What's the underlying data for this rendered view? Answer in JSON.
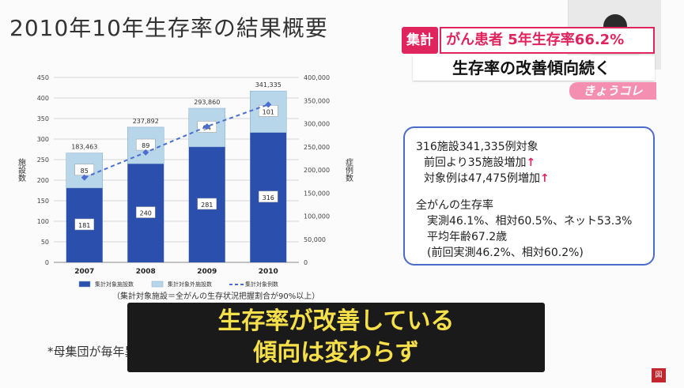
{
  "slide_title": "2010年10年生存率の結果概要",
  "banner": {
    "tag": "集計",
    "line1": "がん患者 5年生存率66.2%",
    "line2": "生存率の改善傾向続く",
    "corner": "きょうコレ"
  },
  "chart_data": {
    "type": "bar",
    "stacked": true,
    "categories": [
      "2007",
      "2008",
      "2009",
      "2010"
    ],
    "series": [
      {
        "name": "集計対象施設数",
        "values": [
          181,
          240,
          281,
          316
        ],
        "color": "#2b4fad"
      },
      {
        "name": "集計対象外施設数",
        "values": [
          85,
          89,
          94,
          101
        ],
        "color": "#b8d6ea"
      },
      {
        "name": "集計対象例数",
        "type": "line",
        "axis": "right",
        "values": [
          183463,
          237892,
          293860,
          341335
        ],
        "color": "#4a6fd0"
      }
    ],
    "line_labels": [
      "183,463",
      "237,892",
      "293,860",
      "341,335"
    ],
    "ylabel_left": "施設数",
    "ylabel_right": "症例数",
    "ylim_left": [
      0,
      450
    ],
    "ylim_right": [
      0,
      400000
    ],
    "y_ticks_left": [
      "0",
      "50",
      "100",
      "150",
      "200",
      "250",
      "300",
      "350",
      "400",
      "450"
    ],
    "y_ticks_right": [
      "0",
      "50,000",
      "100,000",
      "150,000",
      "200,000",
      "250,000",
      "300,000",
      "350,000",
      "400,000"
    ],
    "grid": true,
    "legend_position": "bottom",
    "caption": "（集計対象施設＝全がんの生存状況把握割合が90%以上）"
  },
  "info": {
    "l1": "316施設341,335例対象",
    "l2": "前回より35施設増加",
    "l3": "対象例は47,475例増加",
    "l4": "全がんの生存率",
    "l5": "実測46.1%、相対60.5%、ネット53.3%",
    "l6": "平均年齢67.2歳",
    "l7": "(前回実測46.2%、相対60.2%)",
    "arrow": "↑"
  },
  "footnote": "*母集団が毎年異なってお",
  "subtitle": {
    "line1": "生存率が改善している",
    "line2": "傾向は変わらず"
  },
  "page_badge": "図"
}
